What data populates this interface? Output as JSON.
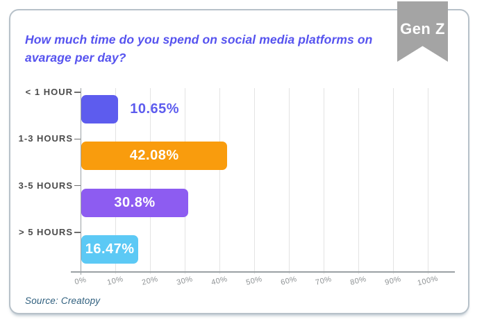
{
  "badge": {
    "label": "Gen Z",
    "background": "#a4a4a4",
    "text_color": "#ffffff"
  },
  "title": {
    "text": "How much time do you spend on social media platforms on avarage per day?",
    "lines": [
      "How much time do you spend on social media platforms on",
      "avarage per day?"
    ],
    "color": "#5653ef"
  },
  "source": {
    "text": "Source: Creatopy",
    "color": "#2f5f7e"
  },
  "chart_data": {
    "type": "bar",
    "orientation": "horizontal",
    "title": "How much time do you spend on social media platforms on avarage per day?",
    "categories": [
      "< 1 HOUR",
      "1-3 HOURS",
      "3-5 HOURS",
      "> 5 HOURS"
    ],
    "values": [
      10.65,
      42.08,
      30.8,
      16.47
    ],
    "value_labels": [
      "10.65%",
      "42.08%",
      "30.8%",
      "16.47%"
    ],
    "bar_colors": [
      "#5d5cee",
      "#f99c0d",
      "#8d5cf1",
      "#5cc9f5"
    ],
    "value_label_placement": [
      "outside",
      "inside",
      "inside",
      "inside"
    ],
    "value_label_inside_color": "#ffffff",
    "xlim": [
      0,
      100
    ],
    "x_tick_labels": [
      "0%",
      "10%",
      "20%",
      "30%",
      "40%",
      "50%",
      "60%",
      "70%",
      "80%",
      "90%",
      "100%"
    ],
    "grid": true,
    "legend": null,
    "xlabel": "",
    "ylabel": ""
  },
  "colors": {
    "grid": "#e3e3e3",
    "axis": "#9aa0a3",
    "category_label": "#4b4b4b",
    "category_tick": "#6d6d6d",
    "x_tick_label": "#8e9294",
    "card_border": "#b7c1c9"
  }
}
